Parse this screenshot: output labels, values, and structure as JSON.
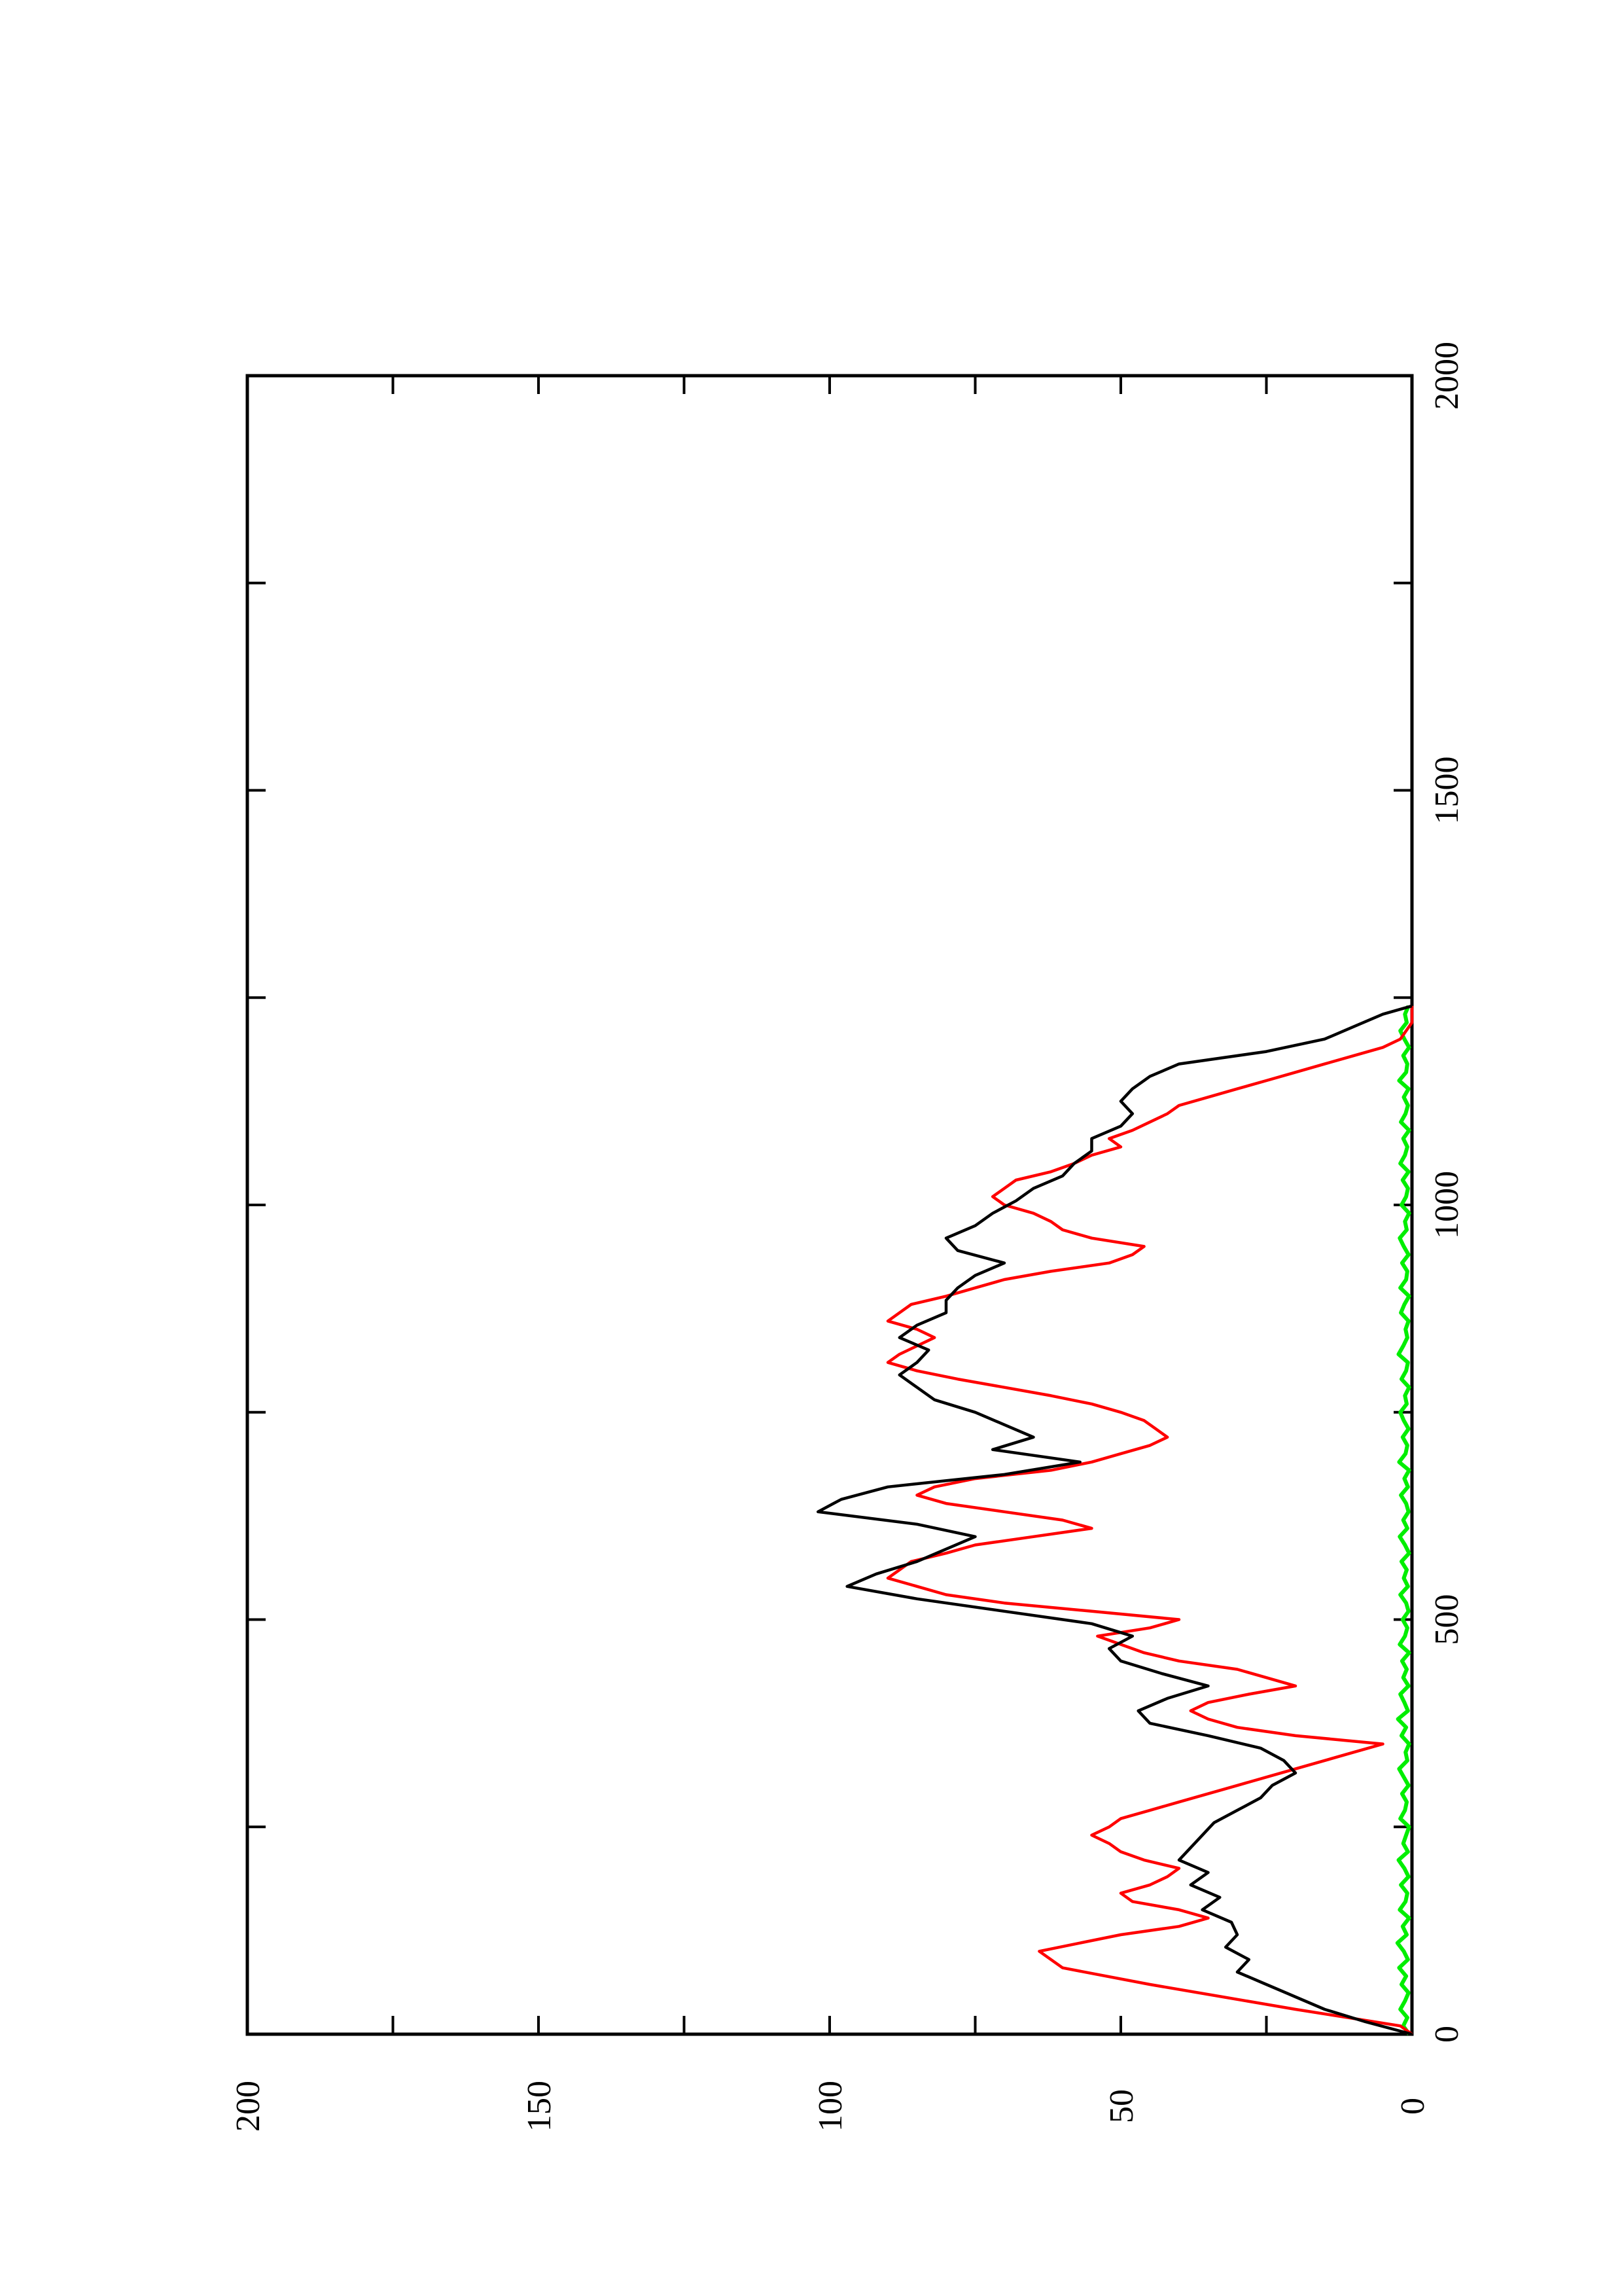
{
  "chart_data": {
    "type": "line",
    "orientation": "page rotated 90 degrees counter-clockwise",
    "title": "",
    "xlabel": "",
    "ylabel": "",
    "xlim": [
      0,
      2000
    ],
    "ylim": [
      0,
      200
    ],
    "x_ticks": [
      "0",
      "500",
      "1000",
      "1500",
      "2000"
    ],
    "y_ticks": [
      "0",
      "50",
      "100",
      "150",
      "200"
    ],
    "grid": false,
    "legend": "none",
    "series": [
      {
        "color": "#000000",
        "x": [
          0,
          15,
          30,
          45,
          60,
          75,
          90,
          105,
          120,
          135,
          150,
          165,
          180,
          195,
          210,
          225,
          240,
          255,
          270,
          285,
          300,
          315,
          330,
          345,
          360,
          375,
          390,
          405,
          420,
          435,
          450,
          465,
          480,
          495,
          510,
          525,
          540,
          555,
          570,
          585,
          600,
          615,
          630,
          645,
          660,
          675,
          690,
          705,
          720,
          735,
          750,
          765,
          780,
          795,
          810,
          825,
          840,
          855,
          870,
          885,
          900,
          915,
          930,
          945,
          960,
          975,
          990,
          1005,
          1020,
          1035,
          1050,
          1065,
          1080,
          1095,
          1110,
          1125,
          1140,
          1155,
          1170,
          1185,
          1200,
          1215,
          1230,
          1240
        ],
        "values": [
          0,
          8,
          15,
          20,
          25,
          30,
          28,
          32,
          30,
          31,
          36,
          33,
          38,
          35,
          40,
          38,
          36,
          34,
          30,
          26,
          24,
          20,
          22,
          26,
          35,
          45,
          47,
          42,
          35,
          43,
          50,
          52,
          48,
          55,
          70,
          85,
          97,
          92,
          85,
          80,
          75,
          85,
          102,
          98,
          90,
          70,
          57,
          72,
          65,
          70,
          75,
          82,
          85,
          88,
          85,
          83,
          88,
          85,
          80,
          80,
          78,
          75,
          70,
          78,
          80,
          75,
          72,
          68,
          65,
          60,
          58,
          55,
          55,
          50,
          48,
          50,
          48,
          45,
          40,
          25,
          15,
          10,
          5,
          0
        ]
      },
      {
        "color": "#ff0000",
        "x": [
          0,
          10,
          30,
          60,
          80,
          100,
          120,
          130,
          140,
          150,
          160,
          170,
          180,
          190,
          200,
          210,
          220,
          230,
          240,
          250,
          260,
          270,
          280,
          300,
          320,
          340,
          350,
          360,
          370,
          380,
          390,
          400,
          410,
          420,
          430,
          440,
          450,
          460,
          470,
          480,
          490,
          500,
          510,
          520,
          530,
          540,
          550,
          560,
          570,
          580,
          590,
          600,
          610,
          620,
          630,
          640,
          650,
          660,
          670,
          680,
          690,
          700,
          710,
          720,
          730,
          740,
          750,
          760,
          770,
          780,
          790,
          800,
          810,
          820,
          830,
          840,
          850,
          860,
          870,
          880,
          890,
          900,
          910,
          920,
          930,
          940,
          950,
          960,
          970,
          980,
          990,
          1000,
          1010,
          1020,
          1030,
          1040,
          1050,
          1060,
          1070,
          1080,
          1090,
          1100,
          1110,
          1120,
          1130,
          1140,
          1150,
          1160,
          1170,
          1180,
          1190,
          1200,
          1210,
          1220,
          1230,
          1240
        ],
        "values": [
          0,
          2,
          20,
          45,
          60,
          64,
          50,
          40,
          35,
          40,
          48,
          50,
          45,
          42,
          40,
          46,
          50,
          52,
          55,
          52,
          50,
          45,
          40,
          30,
          20,
          10,
          5,
          20,
          30,
          35,
          38,
          35,
          28,
          20,
          25,
          30,
          40,
          46,
          50,
          54,
          45,
          40,
          55,
          70,
          80,
          85,
          90,
          88,
          86,
          80,
          75,
          65,
          55,
          60,
          70,
          80,
          85,
          82,
          75,
          62,
          55,
          50,
          45,
          42,
          44,
          46,
          50,
          55,
          62,
          70,
          78,
          85,
          90,
          88,
          85,
          82,
          85,
          90,
          88,
          86,
          80,
          75,
          70,
          62,
          52,
          48,
          46,
          55,
          60,
          62,
          65,
          70,
          72,
          70,
          68,
          62,
          58,
          55,
          50,
          52,
          48,
          45,
          42,
          40,
          35,
          30,
          25,
          20,
          15,
          10,
          5,
          2,
          1,
          0,
          0,
          0
        ]
      },
      {
        "color": "#00ee00",
        "x": [
          0,
          10,
          20,
          30,
          40,
          50,
          60,
          70,
          80,
          90,
          100,
          110,
          120,
          130,
          140,
          150,
          160,
          170,
          180,
          190,
          200,
          210,
          220,
          230,
          240,
          250,
          260,
          270,
          280,
          290,
          300,
          310,
          320,
          330,
          340,
          350,
          360,
          370,
          380,
          390,
          400,
          410,
          420,
          430,
          440,
          450,
          460,
          470,
          480,
          490,
          500,
          510,
          520,
          530,
          540,
          550,
          560,
          570,
          580,
          590,
          600,
          610,
          620,
          630,
          640,
          650,
          660,
          670,
          680,
          690,
          700,
          710,
          720,
          730,
          740,
          750,
          760,
          770,
          780,
          790,
          800,
          810,
          820,
          830,
          840,
          850,
          860,
          870,
          880,
          890,
          900,
          910,
          920,
          930,
          940,
          950,
          960,
          970,
          980,
          990,
          1000,
          1010,
          1020,
          1030,
          1040,
          1050,
          1060,
          1070,
          1080,
          1090,
          1100,
          1110,
          1120,
          1130,
          1140,
          1150,
          1160,
          1170,
          1180,
          1190,
          1200,
          1210,
          1220,
          1230,
          1240
        ],
        "values": [
          0.5,
          1.5,
          0.8,
          2.0,
          1.2,
          0.6,
          1.8,
          1.0,
          2.2,
          0.7,
          1.4,
          2.5,
          0.9,
          1.6,
          0.5,
          2.1,
          1.1,
          0.8,
          1.9,
          0.6,
          1.3,
          2.3,
          0.7,
          1.5,
          1.0,
          0.5,
          2.0,
          1.2,
          0.9,
          1.7,
          0.6,
          1.4,
          2.2,
          0.8,
          1.1,
          0.5,
          1.8,
          1.0,
          2.4,
          0.7,
          1.3,
          2.0,
          0.6,
          1.5,
          0.9,
          1.7,
          0.5,
          2.1,
          1.2,
          0.8,
          1.6,
          0.6,
          1.0,
          2.0,
          0.7,
          1.4,
          0.9,
          1.8,
          0.5,
          1.2,
          2.1,
          0.8,
          1.5,
          0.6,
          1.0,
          1.9,
          0.7,
          1.3,
          0.5,
          2.2,
          1.1,
          0.8,
          1.6,
          0.6,
          1.4,
          2.0,
          0.9,
          1.2,
          0.5,
          1.8,
          1.0,
          0.7,
          2.3,
          1.5,
          0.8,
          1.1,
          0.6,
          1.9,
          1.3,
          0.5,
          2.0,
          1.0,
          0.8,
          1.7,
          0.6,
          1.4,
          2.1,
          0.9,
          1.2,
          0.5,
          1.8,
          1.0,
          0.7,
          1.6,
          0.6,
          2.0,
          1.2,
          0.8,
          1.5,
          0.5,
          1.9,
          1.1,
          0.7,
          1.4,
          0.6,
          2.2,
          1.0,
          0.8,
          1.5,
          0.5,
          1.3,
          2.0,
          0.9,
          1.2,
          0.6
        ]
      }
    ]
  }
}
